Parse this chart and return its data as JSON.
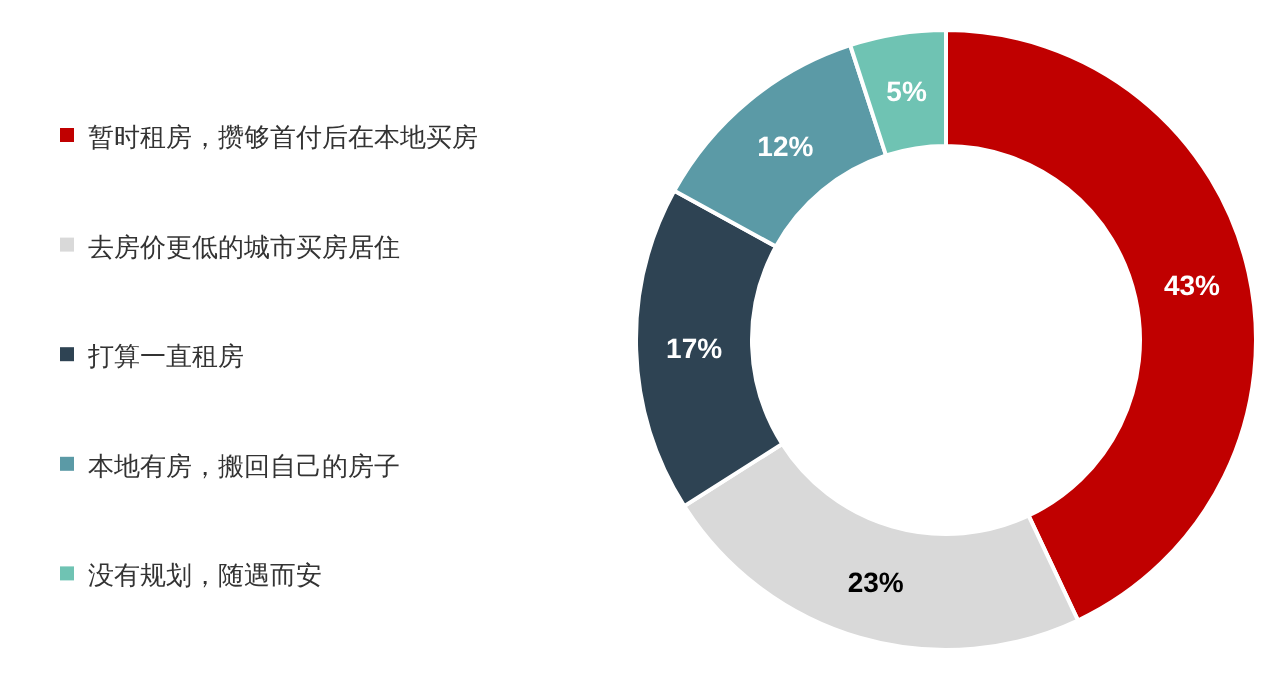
{
  "chart_data": {
    "type": "donut",
    "categories": [
      "暂时租房，攒够首付后在本地买房",
      "去房价更低的城市买房居住",
      "打算一直租房",
      "本地有房，搬回自己的房子",
      "没有规划，随遇而安"
    ],
    "values": [
      43,
      23,
      17,
      12,
      5
    ],
    "colors": [
      "#c00000",
      "#d9d9d9",
      "#2e4353",
      "#5b9aa6",
      "#6fc3b3"
    ],
    "value_labels": [
      "43%",
      "23%",
      "17%",
      "12%",
      "5%"
    ],
    "legend": "left"
  }
}
